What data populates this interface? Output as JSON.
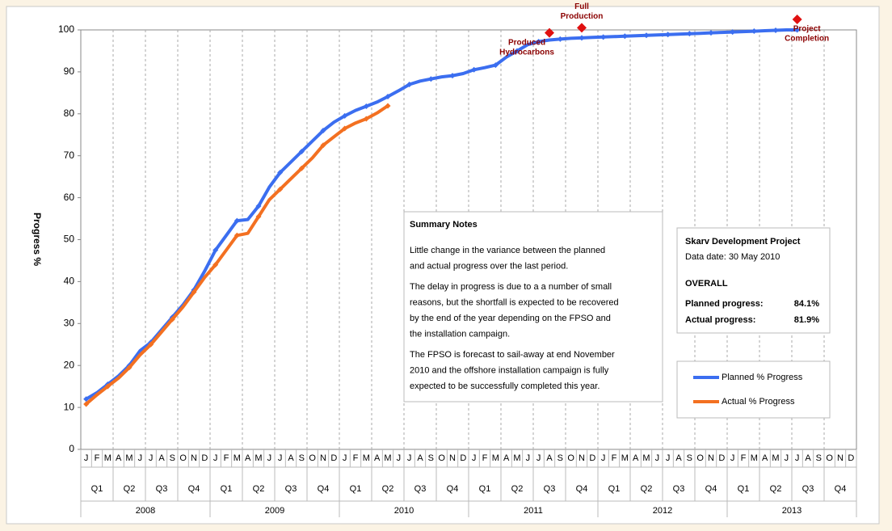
{
  "chart_data": {
    "type": "line",
    "y_label": "Progress %",
    "categories": [
      "J",
      "F",
      "M",
      "A",
      "M",
      "J",
      "J",
      "A",
      "S",
      "O",
      "N",
      "D",
      "J",
      "F",
      "M",
      "A",
      "M",
      "J",
      "J",
      "A",
      "S",
      "O",
      "N",
      "D",
      "J",
      "F",
      "M",
      "A",
      "M",
      "J",
      "J",
      "A",
      "S",
      "O",
      "N",
      "D",
      "J",
      "F",
      "M",
      "A",
      "M",
      "J",
      "J",
      "A",
      "S",
      "O",
      "N",
      "D",
      "J",
      "F",
      "M",
      "A",
      "M",
      "J",
      "J",
      "A",
      "S",
      "O",
      "N",
      "D",
      "J",
      "F",
      "M",
      "A",
      "M",
      "J",
      "J",
      "A",
      "S",
      "O",
      "N",
      "D"
    ],
    "quarter_labels": [
      "Q1",
      "Q2",
      "Q3",
      "Q4"
    ],
    "years": [
      "2008",
      "2009",
      "2010",
      "2011",
      "2012",
      "2013"
    ],
    "ylim": [
      0,
      100
    ],
    "yticks": [
      0,
      10,
      20,
      30,
      40,
      50,
      60,
      70,
      80,
      90,
      100
    ],
    "series": [
      {
        "name": "Planned % Progress",
        "color": "#3b6ef0",
        "values": [
          12,
          13.5,
          15.5,
          17.5,
          20,
          23.5,
          25.5,
          28.5,
          31.5,
          34.5,
          38,
          42.5,
          47.5,
          51,
          54.5,
          54.8,
          58,
          62.5,
          66,
          68.5,
          71,
          73.5,
          76,
          78,
          79.5,
          80.8,
          81.8,
          82.8,
          84.1,
          85.5,
          87,
          87.8,
          88.3,
          88.8,
          89.1,
          89.6,
          90.5,
          91,
          91.6,
          93.5,
          95,
          96.5,
          97.2,
          97.6,
          97.8,
          98,
          98.1,
          98.2,
          98.3,
          98.4,
          98.5,
          98.6,
          98.7,
          98.8,
          98.9,
          99,
          99.1,
          99.2,
          99.3,
          99.4,
          99.5,
          99.6,
          99.7,
          99.8,
          99.9,
          100,
          100,
          null,
          null,
          null,
          null,
          null
        ]
      },
      {
        "name": "Actual % Progress",
        "color": "#f37021",
        "values": [
          10.8,
          13,
          15,
          17,
          19.5,
          22.5,
          25,
          28,
          31,
          34,
          37.5,
          41,
          44,
          47.5,
          51,
          51.5,
          55.5,
          59.5,
          62,
          64.5,
          67,
          69.5,
          72.5,
          74.5,
          76.5,
          77.8,
          78.8,
          80.2,
          81.9,
          null,
          null,
          null,
          null,
          null,
          null,
          null,
          null,
          null,
          null,
          null,
          null,
          null,
          null,
          null,
          null,
          null,
          null,
          null,
          null,
          null,
          null,
          null,
          null,
          null,
          null,
          null,
          null,
          null,
          null,
          null,
          null,
          null,
          null,
          null,
          null,
          null,
          null,
          null,
          null,
          null,
          null,
          null
        ]
      }
    ],
    "milestones": [
      {
        "label": [
          "Produced",
          "Hydrocarbons"
        ],
        "category": 43,
        "value": 99.3,
        "color": "#e01010"
      },
      {
        "label": [
          "Full",
          "Production"
        ],
        "category": 46,
        "value": 100.5,
        "color": "#e01010"
      },
      {
        "label": [
          "Project",
          "Completion"
        ],
        "category": 66,
        "value": 102.5,
        "color": "#e01010"
      }
    ],
    "notes": {
      "title": "Summary Notes",
      "paragraphs": [
        [
          "Little change in the variance between the planned",
          "and actual progress over the last period."
        ],
        [
          "The delay in progress is due to a a number of small",
          "reasons, but the shortfall is expected to be recovered",
          "by the end of the year depending on the FPSO and",
          "the installation campaign."
        ],
        [
          "The FPSO is forecast to sail-away at end November",
          "2010 and the offshore installation campaign is fully",
          "expected to be successfully completed this year."
        ]
      ]
    },
    "summary": {
      "title": "Skarv Development Project",
      "date": "Data date: 30 May 2010",
      "heading": "OVERALL",
      "rows": [
        [
          "Planned progress:",
          "84.1%"
        ],
        [
          "Actual progress:",
          "81.9%"
        ]
      ]
    }
  }
}
